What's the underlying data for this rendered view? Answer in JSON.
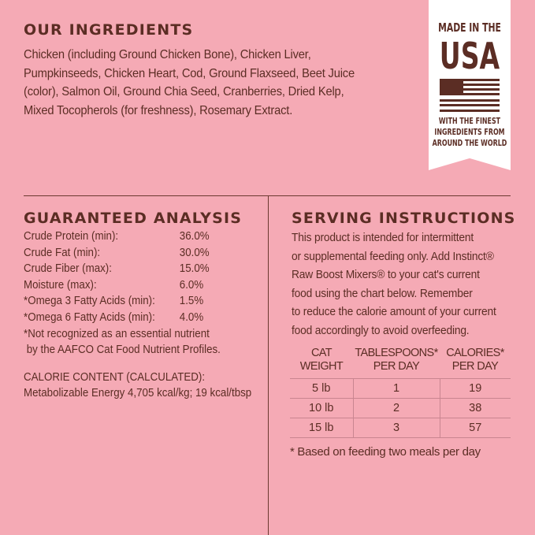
{
  "ingredients": {
    "title": "OUR INGREDIENTS",
    "lines": [
      "Chicken (including Ground Chicken Bone), Chicken Liver,",
      "Pumpkinseeds, Chicken Heart, Cod, Ground Flaxseed, Beet Juice",
      "(color), Salmon Oil, Ground Chia Seed, Cranberries, Dried Kelp,",
      "Mixed Tocopherols (for freshness), Rosemary Extract."
    ]
  },
  "badge": {
    "line1": "MADE IN THE",
    "line2": "USA",
    "line3": "WITH THE FINEST",
    "line4": "INGREDIENTS FROM",
    "line5": "AROUND THE WORLD",
    "icon": "us-flag-icon"
  },
  "analysis": {
    "title": "GUARANTEED ANALYSIS",
    "rows": [
      {
        "label": "Crude Protein (min):",
        "value": "36.0%"
      },
      {
        "label": "Crude Fat (min):",
        "value": "30.0%"
      },
      {
        "label": "Crude Fiber (max):",
        "value": "15.0%"
      },
      {
        "label": "Moisture (max):",
        "value": "6.0%"
      },
      {
        "label": "*Omega 3 Fatty Acids (min):",
        "value": "1.5%"
      },
      {
        "label": "*Omega 6 Fatty Acids (min):",
        "value": "4.0%"
      }
    ],
    "note1": "*Not recognized as an essential nutrient",
    "note2": " by the AAFCO Cat Food Nutrient Profiles.",
    "calorie_title": "CALORIE CONTENT (CALCULATED):",
    "calorie_value": "Metabolizable Energy 4,705 kcal/kg; 19 kcal/tbsp"
  },
  "serving": {
    "title": "SERVING INSTRUCTIONS",
    "lines": [
      "This product is intended for intermittent",
      "or supplemental feeding only. Add Instinct®",
      "Raw Boost Mixers® to your cat's current",
      "food using the chart below. Remember",
      "to reduce the calorie amount of your current",
      "food accordingly to avoid overfeeding."
    ],
    "table": {
      "headers": [
        [
          "CAT",
          "WEIGHT"
        ],
        [
          "TABLESPOONS*",
          "PER DAY"
        ],
        [
          "CALORIES*",
          "PER DAY"
        ]
      ],
      "rows": [
        [
          "5 lb",
          "1",
          "19"
        ],
        [
          "10 lb",
          "2",
          "38"
        ],
        [
          "15 lb",
          "3",
          "57"
        ]
      ]
    },
    "footnote": "* Based on feeding two meals per day"
  }
}
